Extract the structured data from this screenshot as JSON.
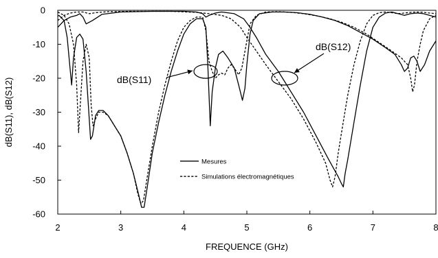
{
  "chart_data": {
    "type": "line",
    "title": "",
    "xlabel": "FREQUENCE (GHz)",
    "ylabel": "dB(S11), dB(S12)",
    "xlim": [
      2,
      8
    ],
    "ylim": [
      -60,
      0
    ],
    "xticks": [
      2,
      3,
      4,
      5,
      6,
      7,
      8
    ],
    "yticks": [
      0,
      -10,
      -20,
      -30,
      -40,
      -50,
      -60
    ],
    "grid": false,
    "legend": {
      "placement": "bottom-center",
      "entries": [
        {
          "name": "Mesures",
          "style": "solid"
        },
        {
          "name": "Simulations électromagnétiques",
          "style": "dashed"
        }
      ]
    },
    "annotations": [
      {
        "text": "dB(S11)",
        "target_x": 4.4,
        "target_y": -18
      },
      {
        "text": "dB(S12)",
        "target_x": 5.6,
        "target_y": -20
      }
    ],
    "series": [
      {
        "name": "Mesures",
        "curve": "dB(S11)",
        "style": "solid",
        "points": [
          [
            1.98,
            -2
          ],
          [
            2.02,
            -1.5
          ],
          [
            2.1,
            -3
          ],
          [
            2.15,
            -8
          ],
          [
            2.2,
            -18
          ],
          [
            2.22,
            -22
          ],
          [
            2.25,
            -14
          ],
          [
            2.3,
            -8
          ],
          [
            2.35,
            -7
          ],
          [
            2.4,
            -8.5
          ],
          [
            2.45,
            -18
          ],
          [
            2.5,
            -32
          ],
          [
            2.52,
            -38
          ],
          [
            2.55,
            -37
          ],
          [
            2.6,
            -31
          ],
          [
            2.65,
            -29.5
          ],
          [
            2.72,
            -29.5
          ],
          [
            2.8,
            -31
          ],
          [
            2.9,
            -34
          ],
          [
            3.0,
            -37
          ],
          [
            3.1,
            -42
          ],
          [
            3.2,
            -48
          ],
          [
            3.28,
            -54
          ],
          [
            3.33,
            -58
          ],
          [
            3.37,
            -58
          ],
          [
            3.42,
            -52
          ],
          [
            3.5,
            -42
          ],
          [
            3.6,
            -33
          ],
          [
            3.7,
            -25
          ],
          [
            3.8,
            -18
          ],
          [
            3.9,
            -12
          ],
          [
            4.0,
            -7
          ],
          [
            4.1,
            -4
          ],
          [
            4.2,
            -2.5
          ],
          [
            4.3,
            -2.5
          ],
          [
            4.35,
            -5
          ],
          [
            4.38,
            -16
          ],
          [
            4.42,
            -34
          ],
          [
            4.45,
            -24
          ],
          [
            4.5,
            -17
          ],
          [
            4.55,
            -13
          ],
          [
            4.62,
            -12
          ],
          [
            4.7,
            -14
          ],
          [
            4.8,
            -17
          ],
          [
            4.87,
            -22
          ],
          [
            4.93,
            -26.5
          ],
          [
            4.97,
            -23
          ],
          [
            5.0,
            -16
          ],
          [
            5.05,
            -7
          ],
          [
            5.1,
            -3
          ],
          [
            5.2,
            -1
          ],
          [
            5.4,
            -0.5
          ],
          [
            5.6,
            -0.5
          ],
          [
            5.8,
            -0.7
          ],
          [
            6.0,
            -1.2
          ],
          [
            6.2,
            -2
          ],
          [
            6.4,
            -3
          ],
          [
            6.6,
            -4.5
          ],
          [
            6.8,
            -6.5
          ],
          [
            7.0,
            -8.5
          ],
          [
            7.2,
            -11
          ],
          [
            7.35,
            -13
          ],
          [
            7.45,
            -16
          ],
          [
            7.5,
            -18
          ],
          [
            7.55,
            -17
          ],
          [
            7.6,
            -14
          ],
          [
            7.65,
            -13.5
          ],
          [
            7.7,
            -15
          ],
          [
            7.75,
            -18
          ],
          [
            7.82,
            -16
          ],
          [
            7.9,
            -12
          ],
          [
            8.0,
            -9
          ]
        ]
      },
      {
        "name": "Mesures",
        "curve": "dB(S12)",
        "style": "solid",
        "points": [
          [
            2.0,
            -5
          ],
          [
            2.1,
            -3
          ],
          [
            2.2,
            -2
          ],
          [
            2.3,
            -1.5
          ],
          [
            2.35,
            -1
          ],
          [
            2.4,
            -2
          ],
          [
            2.45,
            -4
          ],
          [
            2.55,
            -3
          ],
          [
            2.7,
            -1.2
          ],
          [
            3.0,
            -0.5
          ],
          [
            3.5,
            -0.3
          ],
          [
            4.0,
            -0.3
          ],
          [
            4.2,
            -0.5
          ],
          [
            4.3,
            -1
          ],
          [
            4.35,
            -2
          ],
          [
            4.4,
            -1.5
          ],
          [
            4.5,
            -0.8
          ],
          [
            4.6,
            -0.5
          ],
          [
            4.8,
            -1
          ],
          [
            4.95,
            -2.5
          ],
          [
            5.05,
            -5
          ],
          [
            5.15,
            -8
          ],
          [
            5.3,
            -13
          ],
          [
            5.5,
            -18
          ],
          [
            5.7,
            -24
          ],
          [
            5.9,
            -30
          ],
          [
            6.1,
            -37
          ],
          [
            6.3,
            -44
          ],
          [
            6.45,
            -49
          ],
          [
            6.5,
            -51
          ],
          [
            6.53,
            -52
          ],
          [
            6.56,
            -48
          ],
          [
            6.6,
            -44
          ],
          [
            6.7,
            -33
          ],
          [
            6.8,
            -22
          ],
          [
            6.9,
            -12
          ],
          [
            7.0,
            -5
          ],
          [
            7.1,
            -2
          ],
          [
            7.2,
            -0.8
          ],
          [
            7.3,
            -0.5
          ],
          [
            7.4,
            -1
          ],
          [
            7.5,
            -1.5
          ],
          [
            7.6,
            -1
          ],
          [
            7.7,
            -0.8
          ],
          [
            7.8,
            -1
          ],
          [
            7.9,
            -1.5
          ],
          [
            8.0,
            -2
          ]
        ]
      },
      {
        "name": "Simulations électromagnétiques",
        "curve": "dB(S11)",
        "style": "dashed",
        "points": [
          [
            2.0,
            -0.5
          ],
          [
            2.1,
            -1.5
          ],
          [
            2.18,
            -4
          ],
          [
            2.25,
            -10
          ],
          [
            2.3,
            -22
          ],
          [
            2.33,
            -36
          ],
          [
            2.35,
            -30
          ],
          [
            2.4,
            -15
          ],
          [
            2.45,
            -10
          ],
          [
            2.5,
            -14
          ],
          [
            2.53,
            -28
          ],
          [
            2.56,
            -34
          ],
          [
            2.6,
            -32
          ],
          [
            2.65,
            -30
          ],
          [
            2.72,
            -30
          ],
          [
            2.8,
            -31
          ],
          [
            2.9,
            -34
          ],
          [
            3.0,
            -37
          ],
          [
            3.1,
            -42
          ],
          [
            3.2,
            -48
          ],
          [
            3.27,
            -54
          ],
          [
            3.32,
            -57
          ],
          [
            3.36,
            -56
          ],
          [
            3.42,
            -49
          ],
          [
            3.5,
            -40
          ],
          [
            3.6,
            -30
          ],
          [
            3.7,
            -22
          ],
          [
            3.8,
            -15
          ],
          [
            3.9,
            -9
          ],
          [
            4.0,
            -5
          ],
          [
            4.1,
            -3
          ],
          [
            4.2,
            -2
          ],
          [
            4.3,
            -2
          ],
          [
            4.35,
            -6
          ],
          [
            4.4,
            -15
          ],
          [
            4.45,
            -18
          ],
          [
            4.5,
            -20
          ],
          [
            4.55,
            -19
          ],
          [
            4.6,
            -18.5
          ],
          [
            4.65,
            -19
          ],
          [
            4.7,
            -17
          ],
          [
            4.75,
            -16
          ],
          [
            4.8,
            -17
          ],
          [
            4.87,
            -19
          ],
          [
            4.92,
            -17
          ],
          [
            4.98,
            -11
          ],
          [
            5.05,
            -4
          ],
          [
            5.15,
            -1.5
          ],
          [
            5.3,
            -0.5
          ],
          [
            5.5,
            -0.4
          ],
          [
            5.7,
            -0.6
          ],
          [
            5.9,
            -1
          ],
          [
            6.1,
            -1.6
          ],
          [
            6.3,
            -2.4
          ],
          [
            6.5,
            -3.5
          ],
          [
            6.7,
            -5
          ],
          [
            6.9,
            -7
          ],
          [
            7.1,
            -9.5
          ],
          [
            7.3,
            -12
          ],
          [
            7.45,
            -14
          ],
          [
            7.55,
            -16
          ],
          [
            7.6,
            -20
          ],
          [
            7.63,
            -24
          ],
          [
            7.66,
            -22
          ],
          [
            7.7,
            -15
          ],
          [
            7.75,
            -10
          ],
          [
            7.8,
            -6
          ],
          [
            7.9,
            -2.5
          ],
          [
            8.0,
            -1.5
          ]
        ]
      },
      {
        "name": "Simulations électromagnétiques",
        "curve": "dB(S12)",
        "style": "dashed",
        "points": [
          [
            2.0,
            -3
          ],
          [
            2.1,
            -1.5
          ],
          [
            2.2,
            -0.8
          ],
          [
            2.3,
            -0.5
          ],
          [
            2.4,
            -0.5
          ],
          [
            2.5,
            -1
          ],
          [
            2.6,
            -0.7
          ],
          [
            2.8,
            -0.4
          ],
          [
            3.2,
            -0.3
          ],
          [
            3.8,
            -0.3
          ],
          [
            4.2,
            -0.6
          ],
          [
            4.4,
            -1
          ],
          [
            4.6,
            -1.5
          ],
          [
            4.75,
            -2.5
          ],
          [
            4.9,
            -5
          ],
          [
            5.0,
            -8
          ],
          [
            5.15,
            -12
          ],
          [
            5.3,
            -16
          ],
          [
            5.5,
            -21
          ],
          [
            5.7,
            -26
          ],
          [
            5.9,
            -32
          ],
          [
            6.1,
            -39
          ],
          [
            6.25,
            -45
          ],
          [
            6.32,
            -50
          ],
          [
            6.36,
            -52
          ],
          [
            6.4,
            -49
          ],
          [
            6.45,
            -42
          ],
          [
            6.52,
            -34
          ],
          [
            6.6,
            -25
          ],
          [
            6.7,
            -16
          ],
          [
            6.8,
            -9
          ],
          [
            6.9,
            -4
          ],
          [
            7.0,
            -1.5
          ],
          [
            7.1,
            -0.7
          ],
          [
            7.2,
            -0.5
          ],
          [
            7.3,
            -0.7
          ],
          [
            7.4,
            -1
          ],
          [
            7.5,
            -0.8
          ],
          [
            7.6,
            -0.6
          ],
          [
            7.7,
            -0.5
          ],
          [
            7.8,
            -0.6
          ],
          [
            7.9,
            -0.8
          ],
          [
            8.0,
            -1
          ]
        ]
      }
    ]
  }
}
